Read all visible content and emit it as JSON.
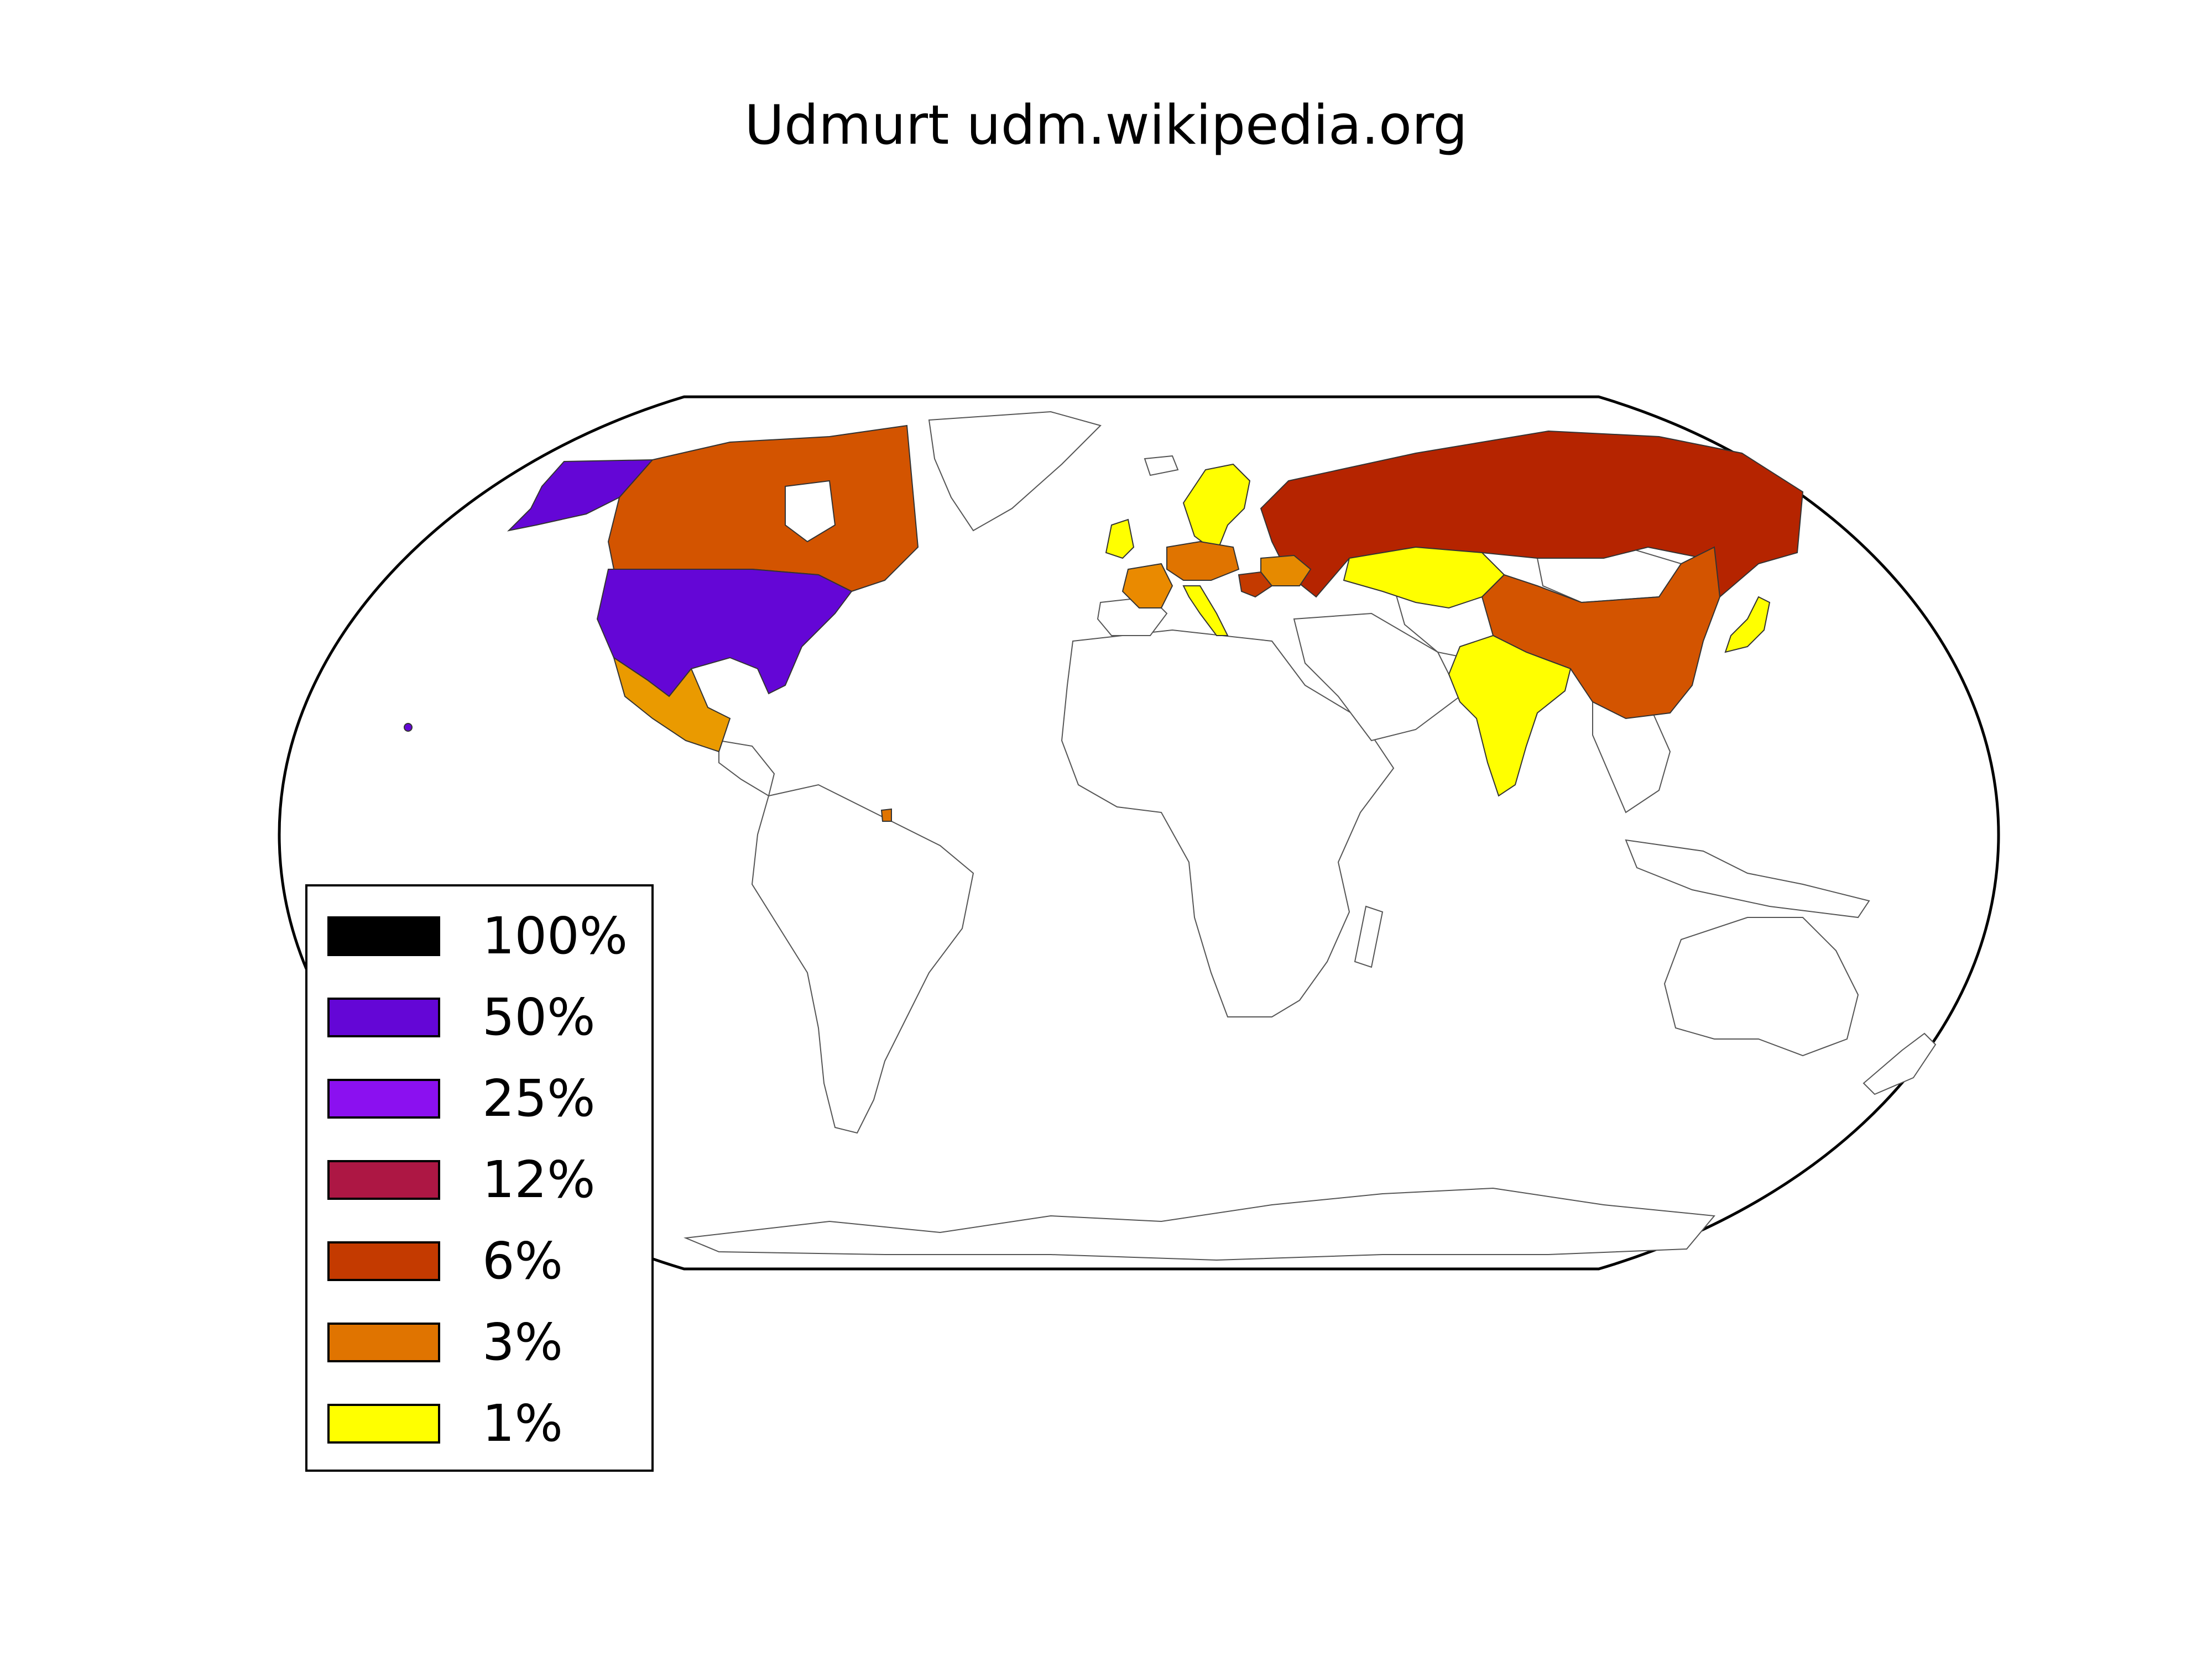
{
  "title": "Udmurt udm.wikipedia.org",
  "legend": {
    "items": [
      {
        "label": "100%",
        "color": "#000000"
      },
      {
        "label": "50%",
        "color": "#6406d6"
      },
      {
        "label": "25%",
        "color": "#8b10f0"
      },
      {
        "label": "12%",
        "color": "#ad1744"
      },
      {
        "label": "6%",
        "color": "#c43a00"
      },
      {
        "label": "3%",
        "color": "#e07400"
      },
      {
        "label": "1%",
        "color": "#ffff00"
      }
    ]
  },
  "regions": [
    {
      "name": "United States",
      "share": "50%",
      "color": "#6406d6"
    },
    {
      "name": "Alaska",
      "share": "50%",
      "color": "#6406d6"
    },
    {
      "name": "Canada",
      "share": "6%",
      "color": "#d35400"
    },
    {
      "name": "Russia",
      "share": "6%",
      "color": "#b52400"
    },
    {
      "name": "China",
      "share": "6%",
      "color": "#d35400"
    },
    {
      "name": "Mexico",
      "share": "3%",
      "color": "#ea9a00"
    },
    {
      "name": "Kazakhstan",
      "share": "1%",
      "color": "#ffff00"
    },
    {
      "name": "India",
      "share": "1%",
      "color": "#ffff00"
    },
    {
      "name": "Japan",
      "share": "1%",
      "color": "#ffff00"
    },
    {
      "name": "Scandinavia",
      "share": "1%",
      "color": "#ffff00"
    },
    {
      "name": "United Kingdom",
      "share": "1%",
      "color": "#ffff00"
    },
    {
      "name": "Italy",
      "share": "1%",
      "color": "#ffff00"
    },
    {
      "name": "Central Europe",
      "share": "3%",
      "color": "#e07400"
    },
    {
      "name": "France",
      "share": "3%",
      "color": "#ea8a00"
    },
    {
      "name": "Ukraine",
      "share": "3%",
      "color": "#e68a00"
    },
    {
      "name": "Romania",
      "share": "6%",
      "color": "#c43a00"
    }
  ]
}
